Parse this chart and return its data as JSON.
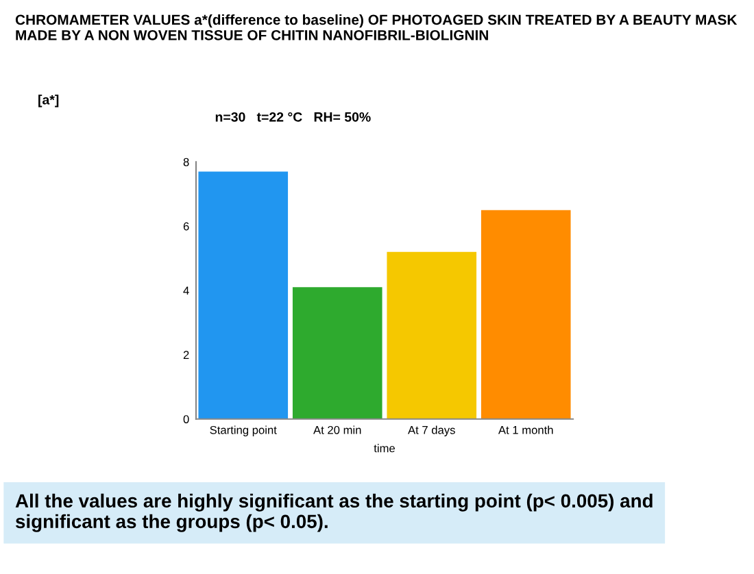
{
  "chart_data": {
    "type": "bar",
    "title": "CHROMAMETER VALUES a*(difference to baseline) OF PHOTOAGED SKIN TREATED BY A BEAUTY MASK MADE BY A NON WOVEN TISSUE OF CHITIN NANOFIBRIL-BIOLIGNIN",
    "subtitle": "n=30   t=22 °C   RH= 50%",
    "xlabel": "time",
    "categories": [
      "Starting point",
      "At 20 min",
      "At 7 days",
      "At 1 month"
    ],
    "values": [
      7.7,
      4.1,
      5.2,
      6.5
    ],
    "colors": [
      "#2196f0",
      "#2eaa2e",
      "#f5c800",
      "#ff8c00"
    ],
    "ylim": [
      0,
      8
    ],
    "yticks": [
      0,
      2,
      4,
      6,
      8
    ],
    "grid": false,
    "legend": false,
    "annotations": [
      "[a*]",
      "All the values are highly significant as the starting point (p< 0.005) and significant as the groups (p< 0.05)."
    ]
  }
}
